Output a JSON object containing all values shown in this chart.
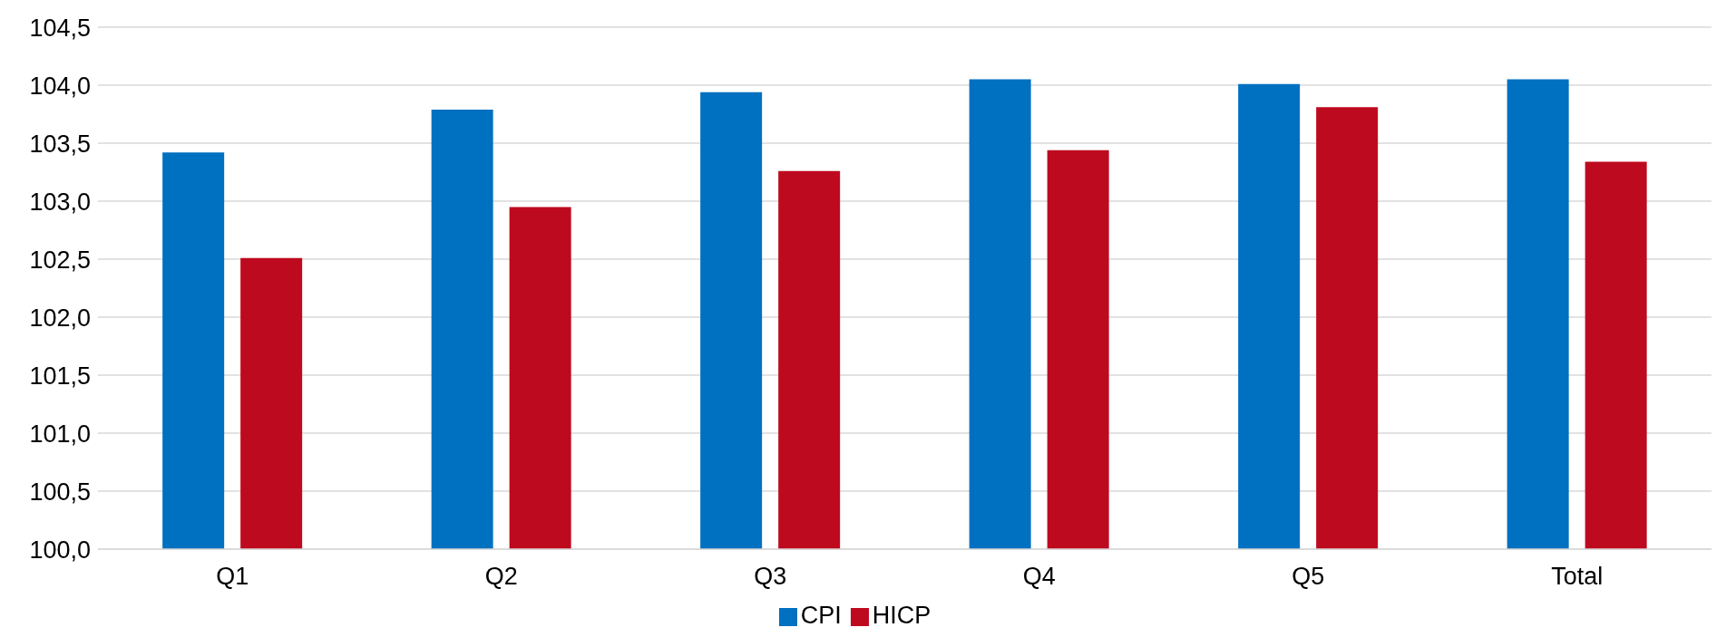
{
  "chart_data": {
    "type": "bar",
    "categories": [
      "Q1",
      "Q2",
      "Q3",
      "Q4",
      "Q5",
      "Total"
    ],
    "series": [
      {
        "name": "CPI",
        "color": "#0070c0",
        "values": [
          103.42,
          103.79,
          103.94,
          104.05,
          104.01,
          104.05
        ]
      },
      {
        "name": "HICP",
        "color": "#be0a1e",
        "values": [
          102.51,
          102.95,
          103.26,
          103.44,
          103.81,
          103.34
        ]
      }
    ],
    "ylim": [
      100,
      104.5
    ],
    "yticks": [
      {
        "value": 100,
        "label": "100,0"
      },
      {
        "value": 100.5,
        "label": "100,5"
      },
      {
        "value": 101,
        "label": "101,0"
      },
      {
        "value": 101.5,
        "label": "101,5"
      },
      {
        "value": 102,
        "label": "102,0"
      },
      {
        "value": 102.5,
        "label": "102,5"
      },
      {
        "value": 103,
        "label": "103,0"
      },
      {
        "value": 103.5,
        "label": "103,5"
      },
      {
        "value": 104,
        "label": "104,0"
      },
      {
        "value": 104.5,
        "label": "104,5"
      }
    ],
    "grid": "y",
    "legend": "bottom"
  }
}
